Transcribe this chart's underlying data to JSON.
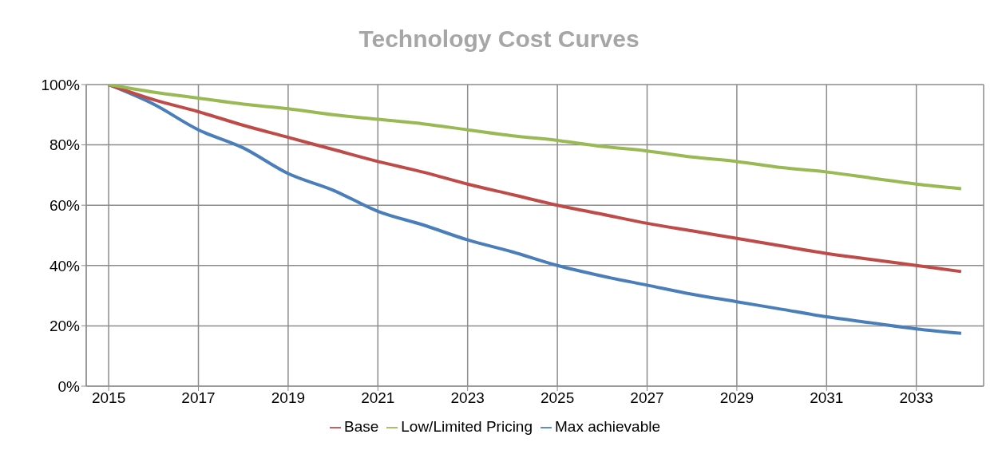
{
  "chart_data": {
    "type": "line",
    "title": "Technology Cost Curves",
    "categories": [
      "2015",
      null,
      "2017",
      null,
      "2019",
      null,
      "2021",
      null,
      "2023",
      null,
      "2025",
      null,
      "2027",
      null,
      "2029",
      null,
      "2031",
      null,
      "2033",
      null
    ],
    "series": [
      {
        "name": "Max achievable",
        "color": "#4a7ebb",
        "values": [
          100,
          93.5,
          85,
          79,
          70.5,
          65,
          58,
          53.5,
          48.5,
          44.5,
          40,
          36.5,
          33.5,
          30.5,
          28,
          25.5,
          23,
          21,
          19,
          17.5
        ]
      },
      {
        "name": "Base",
        "color": "#be4b48",
        "values": [
          100,
          95,
          91,
          86.5,
          82.5,
          78.5,
          74.5,
          71,
          67,
          63.5,
          60,
          57,
          54,
          51.5,
          49,
          46.5,
          44,
          42,
          40,
          38
        ]
      },
      {
        "name": "Low/Limited Pricing",
        "color": "#98b954",
        "values": [
          100,
          97.5,
          95.5,
          93.5,
          92,
          90,
          88.5,
          87,
          85,
          83,
          81.5,
          79.5,
          78,
          76,
          74.5,
          72.5,
          71,
          69,
          67,
          65.5
        ]
      }
    ],
    "ylim": [
      0,
      100
    ],
    "yticks": [
      {
        "value": 0,
        "label": "0%"
      },
      {
        "value": 20,
        "label": "20%"
      },
      {
        "value": 40,
        "label": "40%"
      },
      {
        "value": 60,
        "label": "60%"
      },
      {
        "value": 80,
        "label": "80%"
      },
      {
        "value": 100,
        "label": "100%"
      }
    ],
    "grid": true,
    "legend": "bottom",
    "marker": "none",
    "line_style": "solid"
  }
}
